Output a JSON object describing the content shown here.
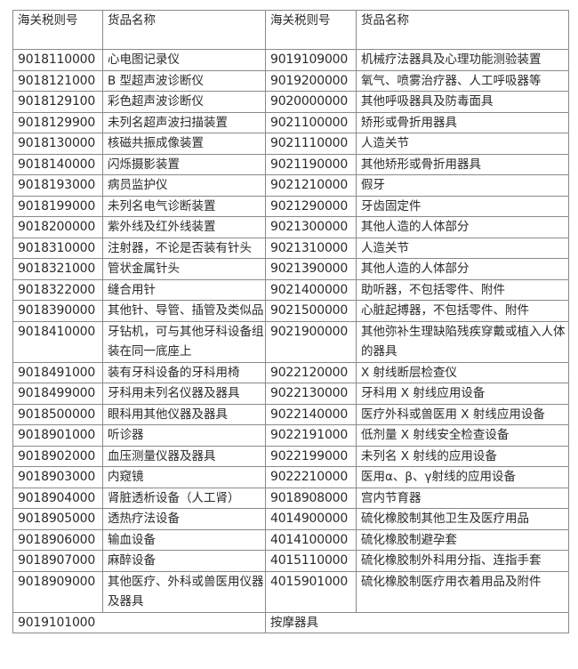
{
  "headers": [
    "海关税则号",
    "货品名称",
    "海关税则号",
    "货品名称"
  ],
  "rows": [
    {
      "code1": "9018110000",
      "name1": "心电图记录仪",
      "code2": "9019109000",
      "name2": "机械疗法器具及心理功能测验装置"
    },
    {
      "code1": "9018121000",
      "name1": "B 型超声波诊断仪",
      "code2": "9019200000",
      "name2": "氧气、喷雾治疗器、人工呼吸器等"
    },
    {
      "code1": "9018129100",
      "name1": "彩色超声波诊断仪",
      "code2": "9020000000",
      "name2": "其他呼吸器具及防毒面具"
    },
    {
      "code1": "9018129900",
      "name1": "未列名超声波扫描装置",
      "code2": "9021100000",
      "name2": "矫形或骨折用器具"
    },
    {
      "code1": "9018130000",
      "name1": "核磁共振成像装置",
      "code2": "9021110000",
      "name2": "人造关节"
    },
    {
      "code1": "9018140000",
      "name1": "闪烁摄影装置",
      "code2": "9021190000",
      "name2": "其他矫形或骨折用器具"
    },
    {
      "code1": "9018193000",
      "name1": "病员监护仪",
      "code2": "9021210000",
      "name2": "假牙"
    },
    {
      "code1": "9018199000",
      "name1": "未列名电气诊断装置",
      "code2": "9021290000",
      "name2": "牙齿固定件"
    },
    {
      "code1": "9018200000",
      "name1": "紫外线及红外线装置",
      "code2": "9021300000",
      "name2": "其他人造的人体部分"
    },
    {
      "code1": "9018310000",
      "name1": "注射器，不论是否装有针头",
      "code2": "9021310000",
      "name2": "人造关节"
    },
    {
      "code1": "9018321000",
      "name1": "管状金属针头",
      "code2": "9021390000",
      "name2": "其他人造的人体部分"
    },
    {
      "code1": "9018322000",
      "name1": "缝合用针",
      "code2": "9021400000",
      "name2": "助听器，不包括零件、附件"
    },
    {
      "code1": "9018390000",
      "name1": "其他针、导管、插管及类似品",
      "code2": "9021500000",
      "name2": "心脏起搏器，不包括零件、附件"
    },
    {
      "code1": "9018410000",
      "name1": "牙钻机，可与其他牙科设备组装在同一底座上",
      "code2": "9021900000",
      "name2": "其他弥补生理缺陷残疾穿戴或植入人体的器具"
    },
    {
      "code1": "9018491000",
      "name1": "装有牙科设备的牙科用椅",
      "code2": "9022120000",
      "name2": "X 射线断层检查仪"
    },
    {
      "code1": "9018499000",
      "name1": "牙科用未列名仪器及器具",
      "code2": "9022130000",
      "name2": "牙科用 X 射线应用设备"
    },
    {
      "code1": "9018500000",
      "name1": "眼科用其他仪器及器具",
      "code2": "9022140000",
      "name2": "医疗外科或兽医用 X 射线应用设备"
    },
    {
      "code1": "9018901000",
      "name1": "听诊器",
      "code2": "9022191000",
      "name2": "低剂量 X 射线安全检查设备"
    },
    {
      "code1": "9018902000",
      "name1": "血压测量仪器及器具",
      "code2": "9022199000",
      "name2": "未列名 X 射线的应用设备"
    },
    {
      "code1": "9018903000",
      "name1": "内窥镜",
      "code2": "9022210000",
      "name2": "医用α、β、γ射线的应用设备"
    },
    {
      "code1": "9018904000",
      "name1": "肾脏透析设备（人工肾）",
      "code2": "9018908000",
      "name2": "宫内节育器"
    },
    {
      "code1": "9018905000",
      "name1": "透热疗法设备",
      "code2": "4014900000",
      "name2": "硫化橡胶制其他卫生及医疗用品"
    },
    {
      "code1": "9018906000",
      "name1": "输血设备",
      "code2": "4014100000",
      "name2": "硫化橡胶制避孕套"
    },
    {
      "code1": "9018907000",
      "name1": "麻醉设备",
      "code2": "4015110000",
      "name2": "硫化橡胶制外科用分指、连指手套"
    },
    {
      "code1": "9018909000",
      "name1": "其他医疗、外科或兽医用仪器及器具",
      "code2": "4015901000",
      "name2": "硫化橡胶制医疗用衣着用品及附件"
    }
  ],
  "last_row": {
    "code": "9019101000",
    "name": "按摩器具"
  }
}
